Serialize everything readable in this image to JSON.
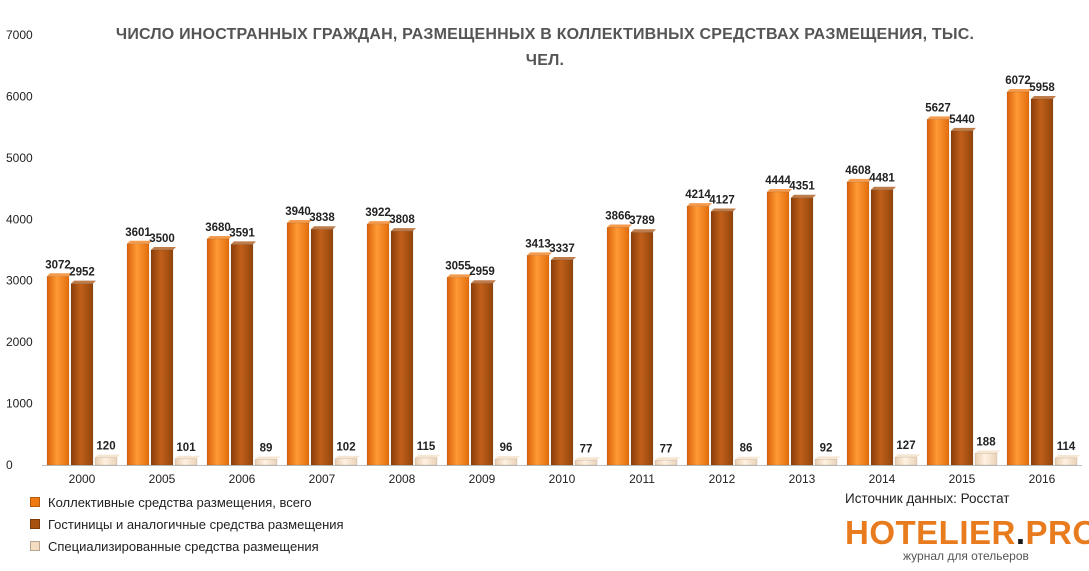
{
  "chart_data": {
    "type": "bar",
    "title": "ЧИСЛО ИНОСТРАННЫХ ГРАЖДАН, РАЗМЕЩЕННЫХ В КОЛЛЕКТИВНЫХ СРЕДСТВАХ РАЗМЕЩЕНИЯ, ТЫС. ЧЕЛ.",
    "categories": [
      "2000",
      "2005",
      "2006",
      "2007",
      "2008",
      "2009",
      "2010",
      "2011",
      "2012",
      "2013",
      "2014",
      "2015",
      "2016"
    ],
    "series": [
      {
        "name": "Коллективные средства размещения, всего",
        "color": "#f07a12",
        "values": [
          3072,
          3601,
          3680,
          3940,
          3922,
          3055,
          3413,
          3866,
          4214,
          4444,
          4608,
          5627,
          6072
        ]
      },
      {
        "name": "Гостиницы и аналогичные средства размещения",
        "color": "#a8500f",
        "values": [
          2952,
          3500,
          3591,
          3838,
          3808,
          2959,
          3337,
          3789,
          4127,
          4351,
          4481,
          5440,
          5958
        ]
      },
      {
        "name": "Специализированные средства размещения",
        "color": "#f3dcc0",
        "values": [
          120,
          101,
          89,
          102,
          115,
          96,
          77,
          77,
          86,
          92,
          127,
          188,
          114
        ]
      }
    ],
    "ylim": [
      0,
      7000
    ],
    "yticks": [
      0,
      1000,
      2000,
      3000,
      4000,
      5000,
      6000,
      7000
    ],
    "legend_position": "bottom-left",
    "grid": false
  },
  "source_text": "Источник данных: Росстат",
  "brand": {
    "name_main": "HOTELIER",
    "name_dot": ".",
    "name_suffix": "PRO",
    "tagline": "журнал для отельеров"
  }
}
